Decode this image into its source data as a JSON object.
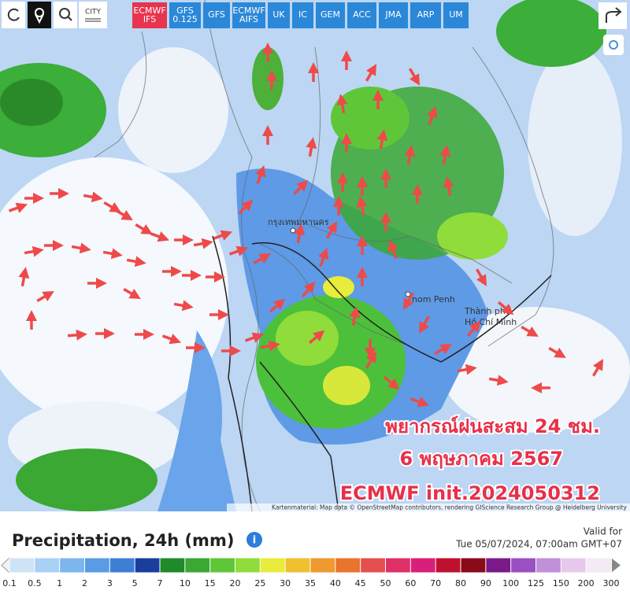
{
  "toolbar": {
    "city": "CITY",
    "models": [
      "ECMWF IFS",
      "GFS 0.125",
      "GFS",
      "ECMWF AIFS",
      "UK",
      "IC",
      "GEM",
      "ACC",
      "JMA",
      "ARP",
      "UM"
    ],
    "active_color": "#e8344e",
    "color": "#2b88d8"
  },
  "map": {
    "labels": {
      "bangkok": "กรุงเทพมหานคร",
      "phnom_penh": "nom Penh",
      "hcm_city": "Thành phố",
      "hcm_name": "Hồ Chí Minh"
    },
    "overlay": [
      "พยากรณ์ฝนสะสม 24 ชม.",
      "6 พฤษภาคม 2567",
      "ECMWF init.2024050312"
    ],
    "attribution": "Kartenmaterial: Map data © OpenStreetMap contributors, rendering GIScience Research Group @ Heidelberg University"
  },
  "legend": {
    "title": "Precipitation, 24h (mm)",
    "valid_label": "Valid for",
    "valid_time": "Tue 05/07/2024, 07:00am GMT+07",
    "ticks": [
      0.1,
      0.5,
      1,
      2,
      3,
      5,
      7,
      10,
      15,
      20,
      25,
      30,
      35,
      40,
      45,
      50,
      60,
      70,
      80,
      90,
      100,
      125,
      150,
      200,
      300
    ],
    "colors": [
      "#cfe3f7",
      "#a9d0f5",
      "#7db6ee",
      "#5a9be3",
      "#3e7fd6",
      "#1a3e9e",
      "#1f8a2a",
      "#3aa832",
      "#5fc63a",
      "#8fdc3a",
      "#e8ec3a",
      "#f0c030",
      "#ee9a2e",
      "#e8742e",
      "#e45050",
      "#e03068",
      "#d8207a",
      "#c01030",
      "#8a0a18",
      "#7a1a8a",
      "#9a50c0",
      "#c090d8",
      "#e8c8ec",
      "#f4eaf4"
    ]
  }
}
